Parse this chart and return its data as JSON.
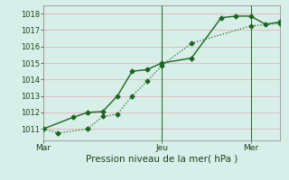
{
  "background_color": "#d8eee8",
  "plot_bg_color": "#d8eee8",
  "grid_color": "#e8b0b8",
  "line_color": "#1a6620",
  "title": "Pression niveau de la mer( hPa )",
  "xtick_labels": [
    "Mar",
    "Jeu",
    "Mer"
  ],
  "xtick_positions": [
    0,
    8,
    14
  ],
  "xlim": [
    0,
    16
  ],
  "ylim": [
    1010.3,
    1018.5
  ],
  "ytick_values": [
    1011,
    1012,
    1013,
    1014,
    1015,
    1016,
    1017,
    1018
  ],
  "series1_x": [
    0,
    1,
    3,
    4,
    5,
    6,
    7,
    8,
    10,
    14,
    16
  ],
  "series1_y": [
    1011.0,
    1010.75,
    1011.0,
    1011.75,
    1011.9,
    1013.0,
    1013.9,
    1014.85,
    1016.2,
    1017.25,
    1017.4
  ],
  "series2_x": [
    0,
    2,
    3,
    4,
    5,
    6,
    7,
    8,
    10,
    12,
    13,
    14,
    15,
    16
  ],
  "series2_y": [
    1011.0,
    1011.7,
    1012.0,
    1012.05,
    1013.0,
    1014.5,
    1014.6,
    1015.0,
    1015.3,
    1017.75,
    1017.85,
    1017.85,
    1017.35,
    1017.5
  ],
  "vline_positions": [
    8,
    14
  ],
  "marker_size": 2.5,
  "linewidth1": 0.9,
  "linewidth2": 1.0,
  "ylabel_fontsize": 6,
  "xlabel_fontsize": 7.5,
  "xtick_fontsize": 6.5
}
